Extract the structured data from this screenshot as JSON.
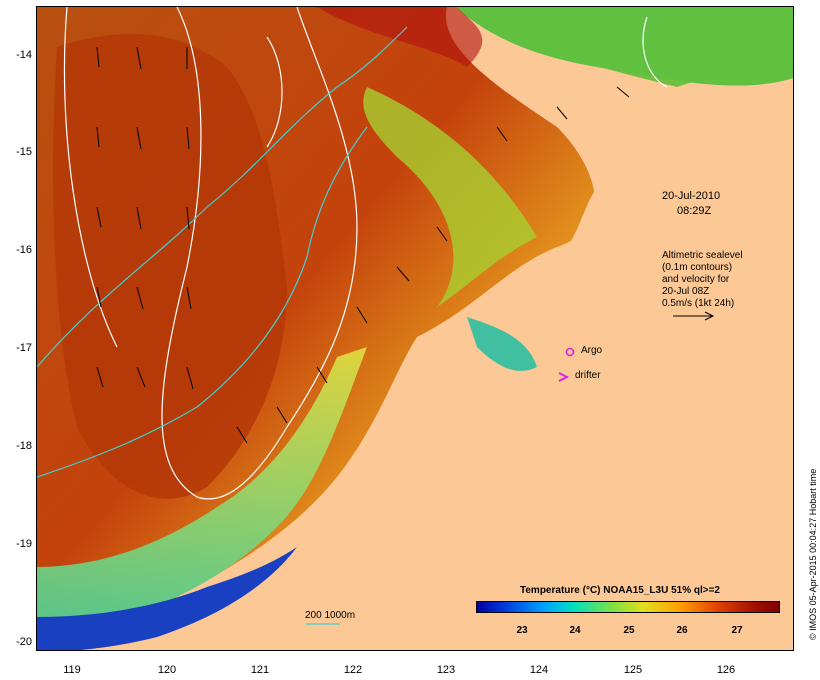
{
  "timestamp_date": "20-Jul-2010",
  "timestamp_time": "08:29Z",
  "legend_text": {
    "line1": "Altimetric sealevel",
    "line2": "(0.1m contours)",
    "line3": "and velocity for",
    "line4": "20-Jul 08Z",
    "line5": "0.5m/s (1kt 24h)"
  },
  "markers": {
    "argo": "Argo",
    "drifter": "drifter"
  },
  "colorbar": {
    "title": "Temperature (°C) NOAA15_L3U 51% ql>=2",
    "ticks": [
      "23",
      "24",
      "25",
      "26",
      "27"
    ]
  },
  "depth_contour_label": "200  1000m",
  "x_axis": {
    "labels": [
      "119",
      "120",
      "121",
      "122",
      "123",
      "124",
      "125",
      "126"
    ]
  },
  "y_axis": {
    "labels": [
      "-14",
      "-15",
      "-16",
      "-17",
      "-18",
      "-19",
      "-20"
    ]
  },
  "credit": "© IMOS 05-Apr-2015 00:04:27 Hobart time",
  "colors": {
    "land": "#fcc896",
    "argo": "#e020e0",
    "drifter": "#e020e0",
    "shelf_contour": "#40d0d0",
    "sealevel_contour": "#ffffff"
  }
}
